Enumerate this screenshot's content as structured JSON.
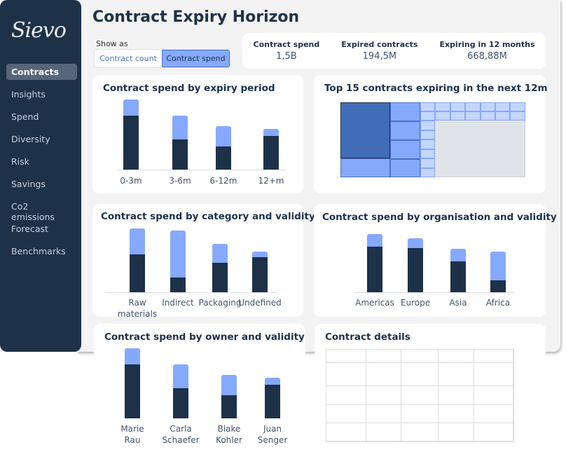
{
  "app": {
    "logo": "Sievo",
    "title": "Contract Expiry Horizon"
  },
  "sidebar": {
    "items": [
      {
        "label": "Contracts",
        "active": true
      },
      {
        "label": "Insights"
      },
      {
        "label": "Spend"
      },
      {
        "label": "Diversity"
      },
      {
        "label": "Risk"
      },
      {
        "label": "Savings"
      },
      {
        "label": "Co2 emissions"
      },
      {
        "label": "Forecast"
      },
      {
        "label": "Benchmarks"
      }
    ]
  },
  "show_as": {
    "label": "Show as",
    "options": [
      "Contract count",
      "Contract spend"
    ],
    "selected": "Contract spend"
  },
  "kpis": [
    {
      "label": "Contract spend",
      "value": "1,5B"
    },
    {
      "label": "Expired contracts",
      "value": "194,5M"
    },
    {
      "label": "Expiring in 12 months",
      "value": "668,88M"
    }
  ],
  "colors": {
    "dark": "#1d3149",
    "light": "#85a9fc",
    "accent": "#4a72c9"
  },
  "treemap": {
    "title": "Top 15 contracts expiring in the next 12m"
  },
  "details": {
    "title": "Contract details",
    "columns": 5,
    "rows": 5
  },
  "chart_data": [
    {
      "type": "bar",
      "stacked": true,
      "title": "Contract spend by expiry period",
      "categories": [
        "0-3m",
        "3-6m",
        "6-12m",
        "12+m"
      ],
      "series": [
        {
          "values": [
            77,
            43,
            33,
            48
          ]
        },
        {
          "values": [
            23,
            34,
            29,
            10
          ]
        }
      ]
    },
    {
      "type": "bar",
      "stacked": true,
      "title": "Contract spend by category and validity",
      "categories": [
        "Raw materials",
        "Indirect",
        "Packaging",
        "Undefined"
      ],
      "series": [
        {
          "values": [
            54,
            21,
            42,
            50
          ]
        },
        {
          "values": [
            37,
            67,
            27,
            8
          ]
        }
      ]
    },
    {
      "type": "bar",
      "stacked": true,
      "title": "Contract spend by organisation and validity",
      "categories": [
        "Americas",
        "Europe",
        "Asia",
        "Africa"
      ],
      "series": [
        {
          "values": [
            65,
            63,
            44,
            17
          ]
        },
        {
          "values": [
            18,
            14,
            18,
            41
          ]
        }
      ]
    },
    {
      "type": "bar",
      "stacked": true,
      "title": "Contract spend by owner and validity",
      "categories": [
        "Marie Rau",
        "Carla Schaefer",
        "Blake Kohler",
        "Juan Senger"
      ],
      "series": [
        {
          "values": [
            77,
            43,
            33,
            48
          ]
        },
        {
          "values": [
            23,
            34,
            29,
            10
          ]
        }
      ]
    }
  ]
}
